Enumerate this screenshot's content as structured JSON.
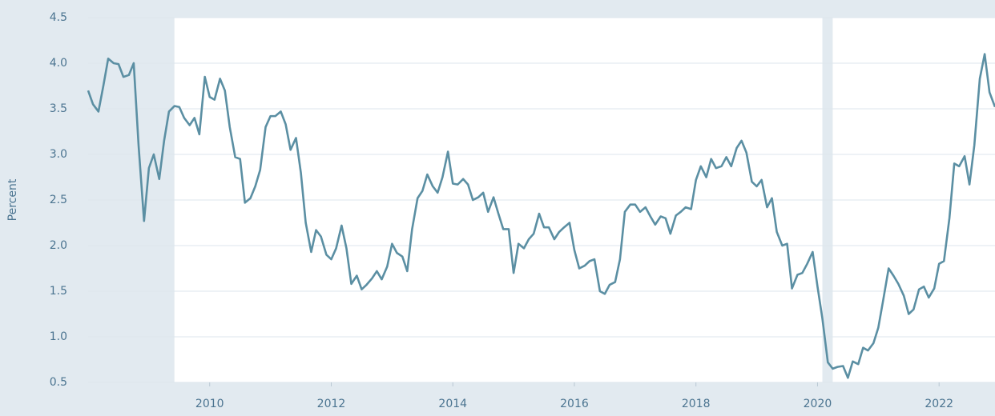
{
  "chart_data": {
    "type": "line",
    "y_label": "Percent",
    "x": [
      2008,
      2008.08,
      2008.17,
      2008.25,
      2008.33,
      2008.42,
      2008.5,
      2008.58,
      2008.67,
      2008.75,
      2008.83,
      2008.92,
      2009,
      2009.08,
      2009.17,
      2009.25,
      2009.33,
      2009.42,
      2009.5,
      2009.58,
      2009.67,
      2009.75,
      2009.83,
      2009.92,
      2010,
      2010.08,
      2010.17,
      2010.25,
      2010.33,
      2010.42,
      2010.5,
      2010.58,
      2010.67,
      2010.75,
      2010.83,
      2010.92,
      2011,
      2011.08,
      2011.17,
      2011.25,
      2011.33,
      2011.42,
      2011.5,
      2011.58,
      2011.67,
      2011.75,
      2011.83,
      2011.92,
      2012,
      2012.08,
      2012.17,
      2012.25,
      2012.33,
      2012.42,
      2012.5,
      2012.58,
      2012.67,
      2012.75,
      2012.83,
      2012.92,
      2013,
      2013.08,
      2013.17,
      2013.25,
      2013.33,
      2013.42,
      2013.5,
      2013.58,
      2013.67,
      2013.75,
      2013.83,
      2013.92,
      2014,
      2014.08,
      2014.17,
      2014.25,
      2014.33,
      2014.42,
      2014.5,
      2014.58,
      2014.67,
      2014.75,
      2014.83,
      2014.92,
      2015,
      2015.08,
      2015.17,
      2015.25,
      2015.33,
      2015.42,
      2015.5,
      2015.58,
      2015.67,
      2015.75,
      2015.83,
      2015.92,
      2016,
      2016.08,
      2016.17,
      2016.25,
      2016.33,
      2016.42,
      2016.5,
      2016.58,
      2016.67,
      2016.75,
      2016.83,
      2016.92,
      2017,
      2017.08,
      2017.17,
      2017.25,
      2017.33,
      2017.42,
      2017.5,
      2017.58,
      2017.67,
      2017.75,
      2017.83,
      2017.92,
      2018,
      2018.08,
      2018.17,
      2018.25,
      2018.33,
      2018.42,
      2018.5,
      2018.58,
      2018.67,
      2018.75,
      2018.83,
      2018.92,
      2019,
      2019.08,
      2019.17,
      2019.25,
      2019.33,
      2019.42,
      2019.5,
      2019.58,
      2019.67,
      2019.75,
      2019.83,
      2019.92,
      2020,
      2020.08,
      2020.17,
      2020.25,
      2020.33,
      2020.42,
      2020.5,
      2020.58,
      2020.67,
      2020.75,
      2020.83,
      2020.92,
      2021,
      2021.08,
      2021.17,
      2021.25,
      2021.33,
      2021.42,
      2021.5,
      2021.58,
      2021.67,
      2021.75,
      2021.83,
      2021.92,
      2022,
      2022.08,
      2022.17,
      2022.25,
      2022.33,
      2022.42,
      2022.5,
      2022.58,
      2022.67,
      2022.75,
      2022.83,
      2022.92
    ],
    "series": [
      {
        "color": "#5b8fa3",
        "values": [
          3.7,
          3.55,
          3.47,
          3.75,
          4.05,
          4.0,
          3.99,
          3.85,
          3.87,
          4.0,
          3.1,
          2.27,
          2.85,
          3.0,
          2.73,
          3.15,
          3.47,
          3.53,
          3.52,
          3.4,
          3.32,
          3.4,
          3.22,
          3.85,
          3.63,
          3.6,
          3.83,
          3.7,
          3.3,
          2.97,
          2.95,
          2.47,
          2.52,
          2.65,
          2.83,
          3.3,
          3.42,
          3.42,
          3.47,
          3.33,
          3.05,
          3.18,
          2.8,
          2.25,
          1.93,
          2.17,
          2.1,
          1.9,
          1.85,
          1.97,
          2.22,
          1.97,
          1.58,
          1.67,
          1.52,
          1.57,
          1.64,
          1.72,
          1.63,
          1.77,
          2.02,
          1.92,
          1.88,
          1.72,
          2.18,
          2.52,
          2.6,
          2.78,
          2.65,
          2.58,
          2.75,
          3.03,
          2.68,
          2.67,
          2.73,
          2.67,
          2.5,
          2.53,
          2.58,
          2.37,
          2.53,
          2.35,
          2.18,
          2.18,
          1.7,
          2.02,
          1.97,
          2.07,
          2.13,
          2.35,
          2.2,
          2.2,
          2.07,
          2.15,
          2.2,
          2.25,
          1.95,
          1.75,
          1.78,
          1.83,
          1.85,
          1.5,
          1.47,
          1.57,
          1.6,
          1.85,
          2.37,
          2.45,
          2.45,
          2.37,
          2.42,
          2.32,
          2.23,
          2.32,
          2.3,
          2.13,
          2.33,
          2.37,
          2.42,
          2.4,
          2.72,
          2.87,
          2.75,
          2.95,
          2.85,
          2.87,
          2.97,
          2.87,
          3.07,
          3.15,
          3.02,
          2.7,
          2.65,
          2.72,
          2.42,
          2.52,
          2.15,
          2.0,
          2.02,
          1.53,
          1.68,
          1.7,
          1.8,
          1.93,
          1.55,
          1.2,
          0.72,
          0.65,
          0.67,
          0.68,
          0.55,
          0.73,
          0.7,
          0.88,
          0.85,
          0.93,
          1.1,
          1.4,
          1.75,
          1.67,
          1.58,
          1.45,
          1.25,
          1.3,
          1.52,
          1.55,
          1.43,
          1.53,
          1.8,
          1.83,
          2.3,
          2.9,
          2.87,
          2.98,
          2.67,
          3.1,
          3.83,
          4.1,
          3.68,
          3.52
        ]
      }
    ],
    "shaded_ranges": [
      [
        2008,
        2009.42
      ],
      [
        2020.08,
        2020.25
      ]
    ],
    "shade_color": "#e2eaf0",
    "xlim": [
      2008,
      2022.92
    ],
    "xticks": [
      2010,
      2012,
      2014,
      2016,
      2018,
      2020,
      2022
    ],
    "ylim": [
      0.5,
      4.5
    ],
    "yticks": [
      {
        "value": 0.5,
        "label": "0.5"
      },
      {
        "value": 1,
        "label": "1.0"
      },
      {
        "value": 1.5,
        "label": "1.5"
      },
      {
        "value": 2,
        "label": "2.0"
      },
      {
        "value": 2.5,
        "label": "2.5"
      },
      {
        "value": 3,
        "label": "3.0"
      },
      {
        "value": 3.5,
        "label": "3.5"
      },
      {
        "value": 4,
        "label": "4.0"
      },
      {
        "value": 4.5,
        "label": "4.5"
      }
    ],
    "grid": true
  }
}
